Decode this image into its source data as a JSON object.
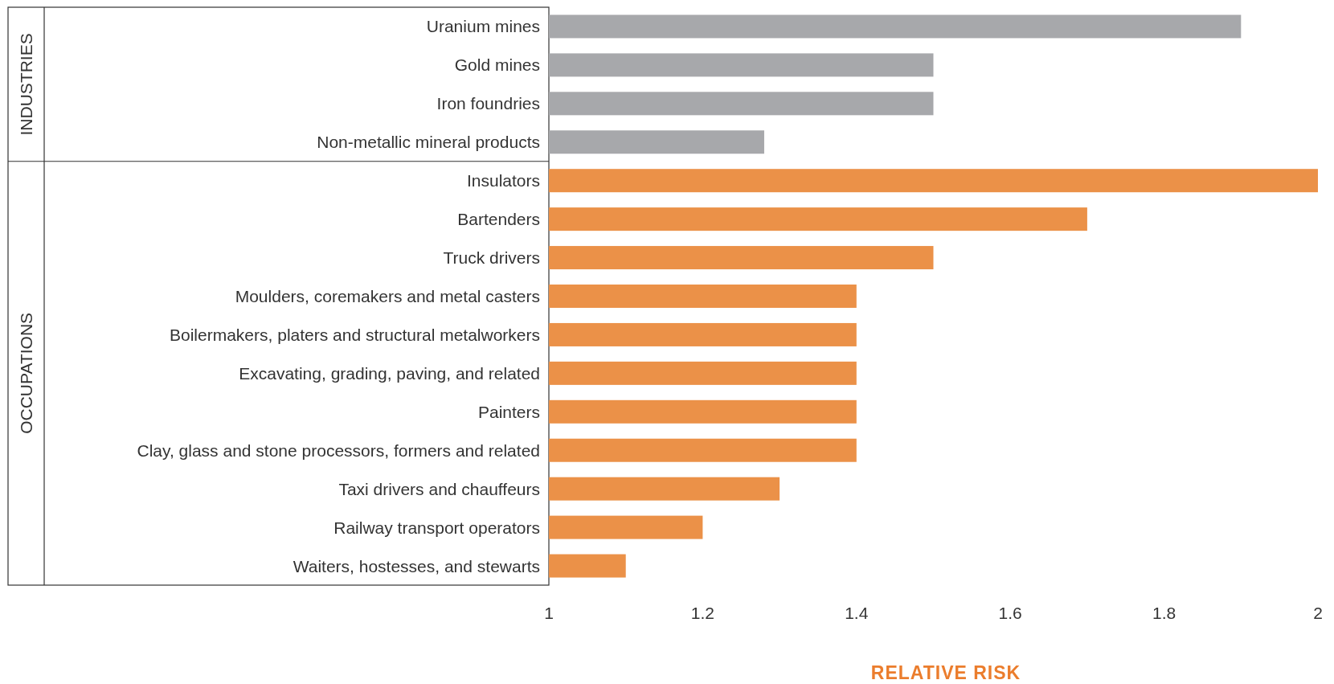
{
  "chart_data": {
    "type": "bar",
    "orientation": "horizontal",
    "xlabel": "RELATIVE RISK",
    "annotations": [
      "INDUSTRIES",
      "OCCUPATIONS"
    ],
    "categories": [
      "Uranium mines",
      "Gold mines",
      "Iron foundries",
      "Non-metallic mineral products",
      "Insulators",
      "Bartenders",
      "Truck drivers",
      "Moulders, coremakers and metal casters",
      "Boilermakers, platers and structural metalworkers",
      "Excavating, grading, paving, and related",
      "Painters",
      "Clay, glass and stone processors, formers and related",
      "Taxi drivers and chauffeurs",
      "Railway transport operators",
      "Waiters, hostesses, and stewarts"
    ],
    "series": [
      {
        "color": "#a7a8ab",
        "values": [
          1.9,
          1.5,
          1.5,
          1.28,
          null,
          null,
          null,
          null,
          null,
          null,
          null,
          null,
          null,
          null,
          null
        ]
      },
      {
        "color": "#eb9148",
        "values": [
          null,
          null,
          null,
          null,
          2.0,
          1.7,
          1.5,
          1.4,
          1.4,
          1.4,
          1.4,
          1.4,
          1.3,
          1.2,
          1.1
        ]
      }
    ],
    "xlim": [
      1,
      2
    ],
    "xticks": [
      1,
      1.2,
      1.4,
      1.6,
      1.8,
      2
    ]
  }
}
